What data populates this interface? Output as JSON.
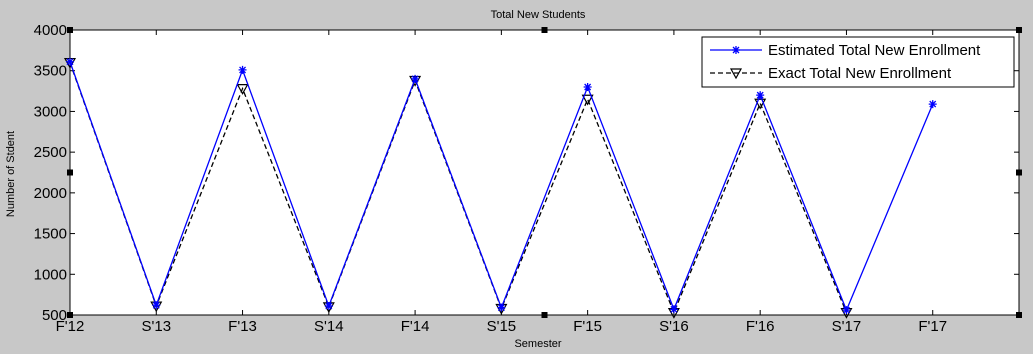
{
  "chart_data": {
    "type": "line",
    "title": "Total New Students",
    "xlabel": "Semester",
    "ylabel": "Number of Stdent",
    "categories": [
      "F'12",
      "S'13",
      "F'13",
      "S'14",
      "F'14",
      "S'15",
      "F'15",
      "S'16",
      "F'16",
      "S'17",
      "F'17"
    ],
    "yticks": [
      "500",
      "1000",
      "1500",
      "2000",
      "2500",
      "3000",
      "3500",
      "4000"
    ],
    "ylim": [
      500,
      4000
    ],
    "grid": false,
    "legend_position": "top-right",
    "series": [
      {
        "name": "Estimated Total New Enrollment",
        "color": "#0000ff",
        "marker": "asterisk",
        "line_style": "solid",
        "values": [
          3610,
          620,
          3510,
          610,
          3400,
          590,
          3300,
          570,
          3200,
          560,
          3090
        ]
      },
      {
        "name": "Exact Total New Enrollment",
        "color": "#000000",
        "marker": "triangle-down",
        "line_style": "dashed",
        "values": [
          3600,
          610,
          3280,
          600,
          3380,
          580,
          3150,
          530,
          3100,
          530,
          null
        ]
      }
    ]
  }
}
